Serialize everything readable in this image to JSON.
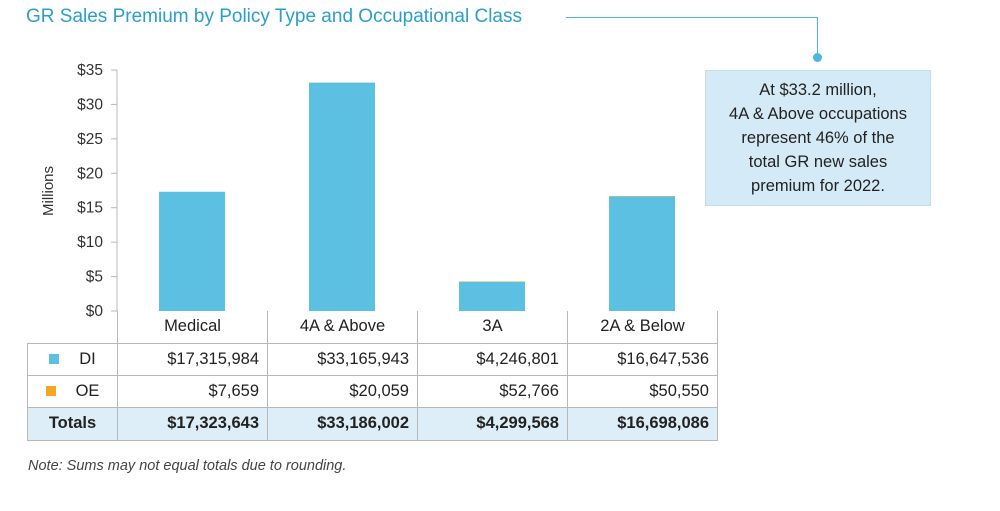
{
  "title": "GR Sales Premium by Policy Type and Occupational Class",
  "callout": "At $33.2 million,\n4A & Above occupations\nrepresent 46% of the\ntotal GR new sales\npremium for 2022.",
  "note": "Note: Sums may not equal totals due to rounding.",
  "colors": {
    "title": "#2a9fc9",
    "di": "#5bc0e2",
    "oe": "#f5a623",
    "callout_bg": "#d4eaf6",
    "totals_bg": "#ddeef8"
  },
  "chart_data": {
    "type": "bar",
    "stacked": true,
    "categories": [
      "Medical",
      "4A & Above",
      "3A",
      "2A & Below"
    ],
    "series": [
      {
        "name": "DI",
        "values": [
          17.315984,
          33.165943,
          4.246801,
          16.647536
        ],
        "color": "#5bc0e2"
      },
      {
        "name": "OE",
        "values": [
          0.007659,
          0.020059,
          0.052766,
          0.05055
        ],
        "color": "#f5a623"
      }
    ],
    "ylabel": "Millions",
    "ylim": [
      0,
      35
    ],
    "yticks": [
      0,
      5,
      10,
      15,
      20,
      25,
      30,
      35
    ],
    "ytick_labels": [
      "$0",
      "$5",
      "$10",
      "$15",
      "$20",
      "$25",
      "$30",
      "$35"
    ],
    "grid": false
  },
  "table": {
    "header": [
      "Medical",
      "4A & Above",
      "3A",
      "2A & Below"
    ],
    "rows": [
      {
        "label": "DI",
        "swatch": "#5bc0e2",
        "values": [
          "$17,315,984",
          "$33,165,943",
          "$4,246,801",
          "$16,647,536"
        ]
      },
      {
        "label": "OE",
        "swatch": "#f5a623",
        "values": [
          "$7,659",
          "$20,059",
          "$52,766",
          "$50,550"
        ]
      }
    ],
    "totals": {
      "label": "Totals",
      "values": [
        "$17,323,643",
        "$33,186,002",
        "$4,299,568",
        "$16,698,086"
      ]
    }
  }
}
